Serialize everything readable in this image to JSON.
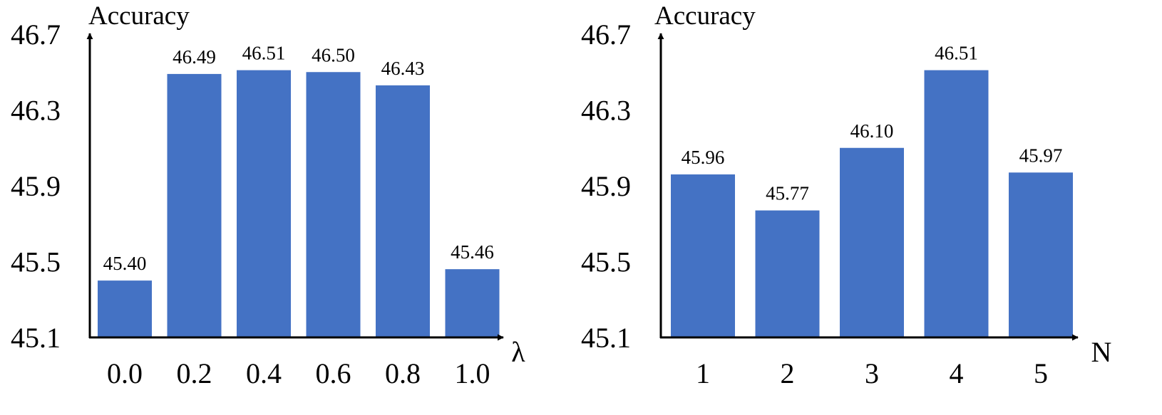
{
  "colors": {
    "bar": "#4472C4",
    "axis": "#000000",
    "text": "#000000"
  },
  "chart_data": [
    {
      "type": "bar",
      "title": "",
      "ylabel": "Accuracy",
      "xlabel": "λ",
      "ylim": [
        45.1,
        46.7
      ],
      "yticks": [
        "46.7",
        "46.3",
        "45.9",
        "45.5",
        "45.1"
      ],
      "grid": false,
      "categories": [
        "0.0",
        "0.2",
        "0.4",
        "0.6",
        "0.8",
        "1.0"
      ],
      "values": [
        45.4,
        46.49,
        46.51,
        46.5,
        46.43,
        45.46
      ],
      "value_labels": [
        "45.40",
        "46.49",
        "46.51",
        "46.50",
        "46.43",
        "45.46"
      ]
    },
    {
      "type": "bar",
      "title": "",
      "ylabel": "Accuracy",
      "xlabel": "N",
      "ylim": [
        45.1,
        46.7
      ],
      "yticks": [
        "46.7",
        "46.3",
        "45.9",
        "45.5",
        "45.1"
      ],
      "grid": false,
      "categories": [
        "1",
        "2",
        "3",
        "4",
        "5"
      ],
      "values": [
        45.96,
        45.77,
        46.1,
        46.51,
        45.97
      ],
      "value_labels": [
        "45.96",
        "45.77",
        "46.10",
        "46.51",
        "45.97"
      ]
    }
  ]
}
